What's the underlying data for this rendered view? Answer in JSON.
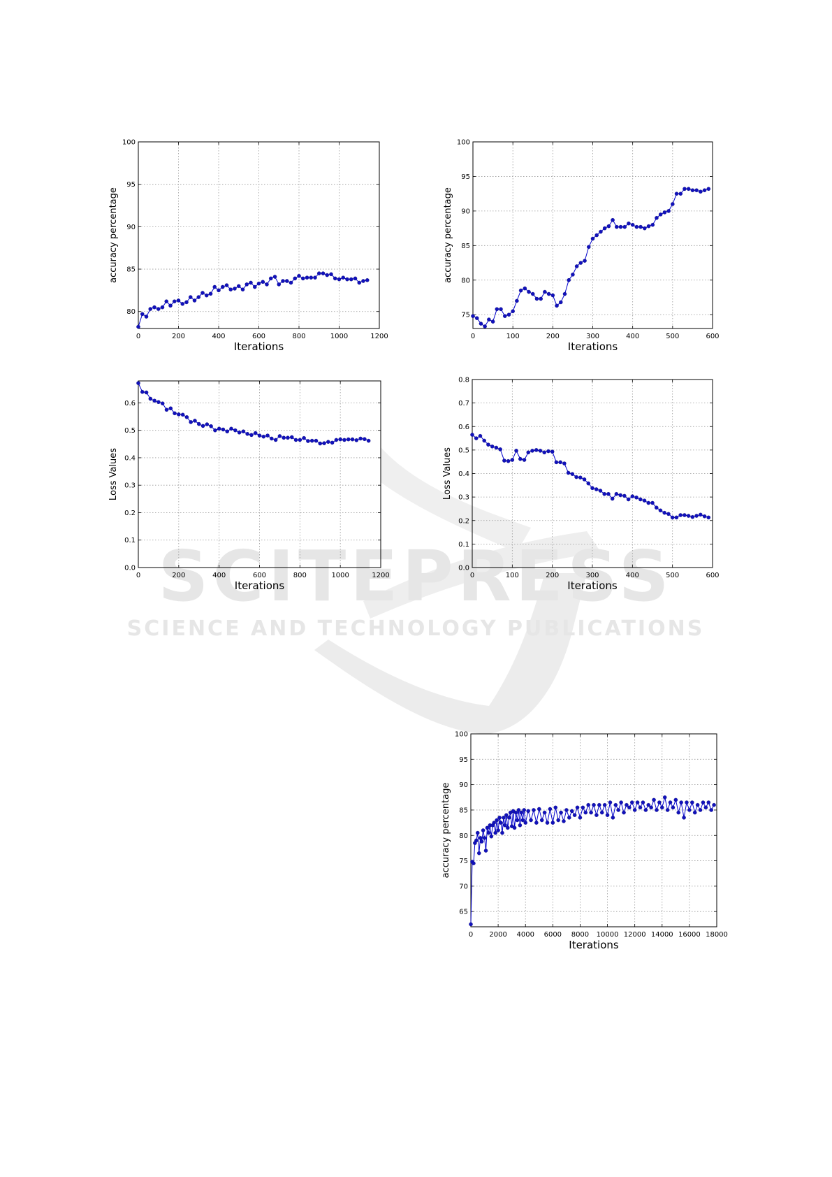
{
  "watermark": {
    "brand": "SCITEPRESS",
    "tagline": "SCIENCE AND TECHNOLOGY PUBLICATIONS"
  },
  "colors": {
    "series": "#0000cc",
    "marker": "#1111bb",
    "grid": "#999999",
    "axis": "#000000",
    "watermark": "#e6e6e6"
  },
  "chart_data": [
    {
      "type": "line",
      "title": "",
      "xlabel": "Iterations",
      "ylabel": "accuracy percentage",
      "xlim": [
        0,
        1200
      ],
      "ylim": [
        78,
        100
      ],
      "xticks": [
        0,
        200,
        400,
        600,
        800,
        1000,
        1200
      ],
      "yticks": [
        80,
        85,
        90,
        95,
        100
      ],
      "grid": true,
      "x": [
        0,
        20,
        40,
        60,
        80,
        100,
        120,
        140,
        160,
        180,
        200,
        220,
        240,
        260,
        280,
        300,
        320,
        340,
        360,
        380,
        400,
        420,
        440,
        460,
        480,
        500,
        520,
        540,
        560,
        580,
        600,
        620,
        640,
        660,
        680,
        700,
        720,
        740,
        760,
        780,
        800,
        820,
        840,
        860,
        880,
        900,
        920,
        940,
        960,
        980,
        1000,
        1020,
        1040,
        1060,
        1080,
        1100,
        1120,
        1140
      ],
      "y": [
        78.2,
        79.7,
        79.4,
        80.3,
        80.5,
        80.3,
        80.5,
        81.2,
        80.7,
        81.2,
        81.3,
        80.9,
        81.1,
        81.7,
        81.3,
        81.7,
        82.2,
        81.9,
        82.1,
        82.9,
        82.5,
        82.9,
        83.1,
        82.6,
        82.7,
        83.0,
        82.6,
        83.2,
        83.4,
        82.9,
        83.3,
        83.5,
        83.2,
        83.9,
        84.1,
        83.2,
        83.6,
        83.6,
        83.4,
        83.9,
        84.2,
        83.9,
        84.0,
        84.0,
        84.0,
        84.5,
        84.5,
        84.3,
        84.4,
        83.9,
        83.8,
        84.0,
        83.8,
        83.8,
        83.9,
        83.4,
        83.6,
        83.7
      ]
    },
    {
      "type": "line",
      "title": "",
      "xlabel": "Iterations",
      "ylabel": "accuracy percentage",
      "xlim": [
        0,
        600
      ],
      "ylim": [
        73,
        100
      ],
      "xticks": [
        0,
        100,
        200,
        300,
        400,
        500,
        600
      ],
      "yticks": [
        75,
        80,
        85,
        90,
        95,
        100
      ],
      "grid": true,
      "x": [
        0,
        10,
        20,
        30,
        40,
        50,
        60,
        70,
        80,
        90,
        100,
        110,
        120,
        130,
        140,
        150,
        160,
        170,
        180,
        190,
        200,
        210,
        220,
        230,
        240,
        250,
        260,
        270,
        280,
        290,
        300,
        310,
        320,
        330,
        340,
        350,
        360,
        370,
        380,
        390,
        400,
        410,
        420,
        430,
        440,
        450,
        460,
        470,
        480,
        490,
        500,
        510,
        520,
        530,
        540,
        550,
        560,
        570,
        580,
        590
      ],
      "y": [
        74.8,
        74.5,
        73.7,
        73.3,
        74.3,
        74.0,
        75.8,
        75.8,
        74.8,
        75.0,
        75.5,
        77.0,
        78.5,
        78.8,
        78.3,
        78.0,
        77.3,
        77.3,
        78.3,
        78.0,
        77.8,
        76.3,
        76.8,
        78.0,
        80.0,
        80.8,
        82.0,
        82.5,
        82.8,
        84.8,
        86.0,
        86.5,
        87.0,
        87.5,
        87.8,
        88.7,
        87.7,
        87.7,
        87.7,
        88.2,
        88.0,
        87.7,
        87.7,
        87.5,
        87.8,
        88.0,
        89.0,
        89.5,
        89.8,
        90.0,
        91.0,
        92.5,
        92.5,
        93.2,
        93.2,
        93.0,
        93.0,
        92.8,
        93.0,
        93.2
      ]
    },
    {
      "type": "line",
      "title": "",
      "xlabel": "Iterations",
      "ylabel": "Loss Values",
      "xlim": [
        0,
        1200
      ],
      "ylim": [
        0,
        0.68
      ],
      "xticks": [
        0,
        200,
        400,
        600,
        800,
        1000,
        1200
      ],
      "yticks": [
        0.0,
        0.1,
        0.2,
        0.3,
        0.4,
        0.5,
        0.6
      ],
      "grid": true,
      "x": [
        0,
        20,
        40,
        60,
        80,
        100,
        120,
        140,
        160,
        180,
        200,
        220,
        240,
        260,
        280,
        300,
        320,
        340,
        360,
        380,
        400,
        420,
        440,
        460,
        480,
        500,
        520,
        540,
        560,
        580,
        600,
        620,
        640,
        660,
        680,
        700,
        720,
        740,
        760,
        780,
        800,
        820,
        840,
        860,
        880,
        900,
        920,
        940,
        960,
        980,
        1000,
        1020,
        1040,
        1060,
        1080,
        1100,
        1120,
        1140
      ],
      "y": [
        0.672,
        0.64,
        0.638,
        0.615,
        0.608,
        0.603,
        0.598,
        0.575,
        0.58,
        0.562,
        0.558,
        0.557,
        0.548,
        0.53,
        0.535,
        0.523,
        0.516,
        0.522,
        0.515,
        0.5,
        0.506,
        0.503,
        0.496,
        0.506,
        0.5,
        0.492,
        0.496,
        0.487,
        0.483,
        0.49,
        0.481,
        0.477,
        0.481,
        0.47,
        0.465,
        0.479,
        0.473,
        0.473,
        0.475,
        0.465,
        0.465,
        0.472,
        0.461,
        0.462,
        0.462,
        0.452,
        0.453,
        0.458,
        0.455,
        0.465,
        0.467,
        0.465,
        0.467,
        0.467,
        0.464,
        0.47,
        0.468,
        0.462
      ]
    },
    {
      "type": "line",
      "title": "",
      "xlabel": "Iterations",
      "ylabel": "Loss Values",
      "xlim": [
        0,
        600
      ],
      "ylim": [
        0,
        0.8
      ],
      "xticks": [
        0,
        100,
        200,
        300,
        400,
        500,
        600
      ],
      "yticks": [
        0.0,
        0.1,
        0.2,
        0.3,
        0.4,
        0.5,
        0.6,
        0.7,
        0.8
      ],
      "grid": true,
      "x": [
        0,
        10,
        20,
        30,
        40,
        50,
        60,
        70,
        80,
        90,
        100,
        110,
        120,
        130,
        140,
        150,
        160,
        170,
        180,
        190,
        200,
        210,
        220,
        230,
        240,
        250,
        260,
        270,
        280,
        290,
        300,
        310,
        320,
        330,
        340,
        350,
        360,
        370,
        380,
        390,
        400,
        410,
        420,
        430,
        440,
        450,
        460,
        470,
        480,
        490,
        500,
        510,
        520,
        530,
        540,
        550,
        560,
        570,
        580,
        590
      ],
      "y": [
        0.565,
        0.55,
        0.56,
        0.54,
        0.523,
        0.515,
        0.51,
        0.503,
        0.455,
        0.453,
        0.458,
        0.497,
        0.462,
        0.458,
        0.49,
        0.497,
        0.5,
        0.497,
        0.49,
        0.495,
        0.493,
        0.448,
        0.448,
        0.443,
        0.403,
        0.398,
        0.385,
        0.383,
        0.375,
        0.358,
        0.338,
        0.333,
        0.327,
        0.313,
        0.313,
        0.293,
        0.313,
        0.308,
        0.305,
        0.29,
        0.303,
        0.298,
        0.29,
        0.285,
        0.275,
        0.275,
        0.255,
        0.243,
        0.233,
        0.228,
        0.213,
        0.213,
        0.223,
        0.223,
        0.22,
        0.215,
        0.22,
        0.225,
        0.218,
        0.213
      ]
    },
    {
      "type": "line",
      "title": "",
      "xlabel": "Iterations",
      "ylabel": "accuracy percentage",
      "xlim": [
        0,
        18000
      ],
      "ylim": [
        62,
        100
      ],
      "xticks": [
        0,
        2000,
        4000,
        6000,
        8000,
        10000,
        12000,
        14000,
        16000,
        18000
      ],
      "yticks": [
        65,
        70,
        75,
        80,
        85,
        90,
        95,
        100
      ],
      "grid": true,
      "x": [
        0,
        100,
        200,
        300,
        400,
        500,
        600,
        700,
        800,
        900,
        1000,
        1100,
        1200,
        1300,
        1400,
        1500,
        1600,
        1700,
        1800,
        1900,
        2000,
        2100,
        2200,
        2300,
        2400,
        2500,
        2600,
        2700,
        2800,
        2900,
        3000,
        3100,
        3200,
        3300,
        3400,
        3500,
        3600,
        3700,
        3800,
        3900,
        4000,
        4200,
        4400,
        4600,
        4800,
        5000,
        5200,
        5400,
        5600,
        5800,
        6000,
        6200,
        6400,
        6600,
        6800,
        7000,
        7200,
        7400,
        7600,
        7800,
        8000,
        8200,
        8400,
        8600,
        8800,
        9000,
        9200,
        9400,
        9600,
        9800,
        10000,
        10200,
        10400,
        10600,
        10800,
        11000,
        11200,
        11400,
        11600,
        11800,
        12000,
        12200,
        12400,
        12600,
        12800,
        13000,
        13200,
        13400,
        13600,
        13800,
        14000,
        14200,
        14400,
        14600,
        14800,
        15000,
        15200,
        15400,
        15600,
        15800,
        16000,
        16200,
        16400,
        16600,
        16800,
        17000,
        17200,
        17400,
        17600,
        17800
      ],
      "y": [
        62.5,
        74.8,
        74.5,
        78.5,
        79.0,
        80.5,
        76.5,
        79.5,
        78.8,
        81.0,
        79.5,
        77.0,
        81.5,
        80.5,
        82.0,
        79.8,
        82.0,
        82.5,
        80.5,
        83.0,
        81.0,
        83.5,
        82.5,
        80.5,
        83.5,
        82.0,
        84.0,
        81.5,
        83.5,
        84.5,
        81.8,
        84.8,
        81.5,
        84.5,
        83.0,
        85.0,
        82.0,
        84.5,
        83.0,
        85.0,
        82.5,
        84.8,
        83.0,
        85.0,
        82.5,
        85.2,
        83.0,
        84.5,
        82.5,
        85.2,
        82.5,
        85.5,
        83.0,
        84.5,
        82.8,
        85.0,
        83.5,
        84.8,
        84.0,
        85.5,
        83.5,
        85.5,
        84.5,
        86.0,
        84.5,
        86.0,
        84.0,
        86.0,
        84.5,
        86.0,
        84.0,
        86.5,
        83.5,
        86.0,
        85.0,
        86.5,
        84.5,
        86.0,
        85.5,
        86.5,
        85.0,
        86.5,
        85.5,
        86.5,
        85.0,
        86.0,
        85.5,
        87.0,
        85.0,
        86.5,
        85.5,
        87.5,
        85.0,
        86.5,
        85.5,
        87.0,
        84.5,
        86.5,
        83.5,
        86.5,
        85.0,
        86.5,
        84.5,
        86.0,
        85.0,
        86.5,
        85.5,
        86.5,
        85.0,
        86.0
      ]
    }
  ]
}
